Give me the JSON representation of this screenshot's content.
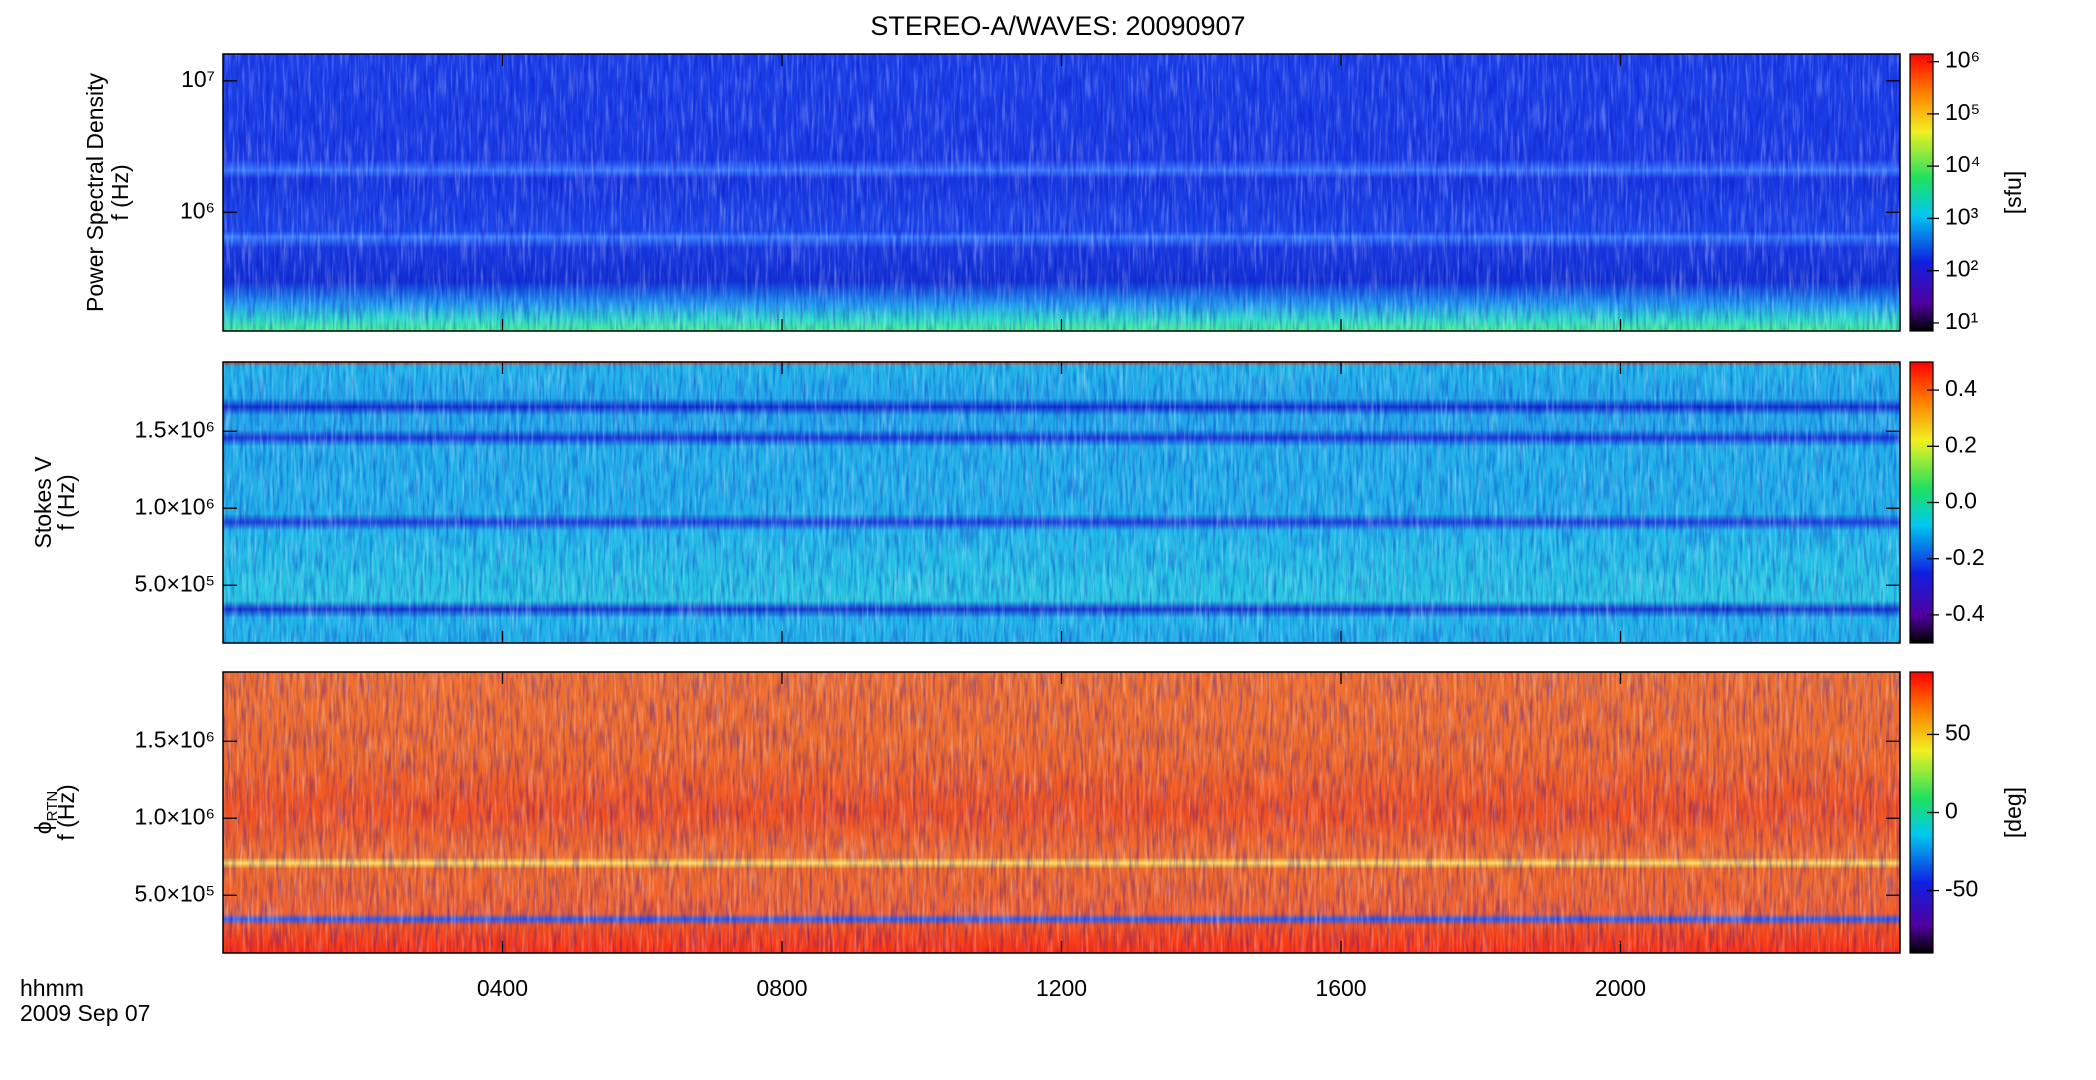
{
  "figure": {
    "title": "STEREO-A/WAVES: 20090907",
    "x_label": "hhmm",
    "date": "2009 Sep 07",
    "xlim": [
      0,
      24
    ],
    "xticks": [
      {
        "value": 4,
        "label": "0400"
      },
      {
        "value": 8,
        "label": "0800"
      },
      {
        "value": 12,
        "label": "1200"
      },
      {
        "value": 16,
        "label": "1600"
      },
      {
        "value": 20,
        "label": "2000"
      }
    ]
  },
  "chart_data": [
    {
      "type": "heatmap",
      "y_label": "Power Spectral Density",
      "y_unit": "f (Hz)",
      "ylog": true,
      "ylim": [
        125000,
        16000000
      ],
      "yticks": [
        {
          "value": 1000000,
          "label": "10⁶"
        },
        {
          "value": 10000000,
          "label": "10⁷"
        }
      ],
      "colorbar": {
        "log": true,
        "clim": [
          7,
          1400000
        ],
        "label": "[sfu]",
        "ticks": [
          {
            "value": 10,
            "label": "10¹"
          },
          {
            "value": 100,
            "label": "10²"
          },
          {
            "value": 1000,
            "label": "10³"
          },
          {
            "value": 10000,
            "label": "10⁴"
          },
          {
            "value": 100000,
            "label": "10⁵"
          },
          {
            "value": 1000000,
            "label": "10⁶"
          }
        ]
      }
    },
    {
      "type": "heatmap",
      "y_label": "Stokes V",
      "y_unit": "f (Hz)",
      "ylog": false,
      "ylim": [
        125000,
        1950000
      ],
      "yticks": [
        {
          "value": 500000,
          "label": "5.0×10⁵"
        },
        {
          "value": 1000000,
          "label": "1.0×10⁶"
        },
        {
          "value": 1500000,
          "label": "1.5×10⁶"
        }
      ],
      "colorbar": {
        "log": false,
        "clim": [
          -0.5,
          0.5
        ],
        "ticks": [
          -0.4,
          -0.2,
          {
            "value": 0,
            "label": "0.0"
          },
          0.2,
          0.4
        ]
      }
    },
    {
      "type": "heatmap",
      "y_label": "ϕ",
      "y_label_sub": "RTN",
      "y_unit": "f (Hz)",
      "ylog": false,
      "ylim": [
        125000,
        1950000
      ],
      "yticks": [
        {
          "value": 500000,
          "label": "5.0×10⁵"
        },
        {
          "value": 1000000,
          "label": "1.0×10⁶"
        },
        {
          "value": 1500000,
          "label": "1.5×10⁶"
        }
      ],
      "colorbar": {
        "log": false,
        "clim": [
          -90,
          90
        ],
        "label": "[deg]",
        "ticks": [
          -50,
          0,
          50
        ]
      }
    }
  ]
}
